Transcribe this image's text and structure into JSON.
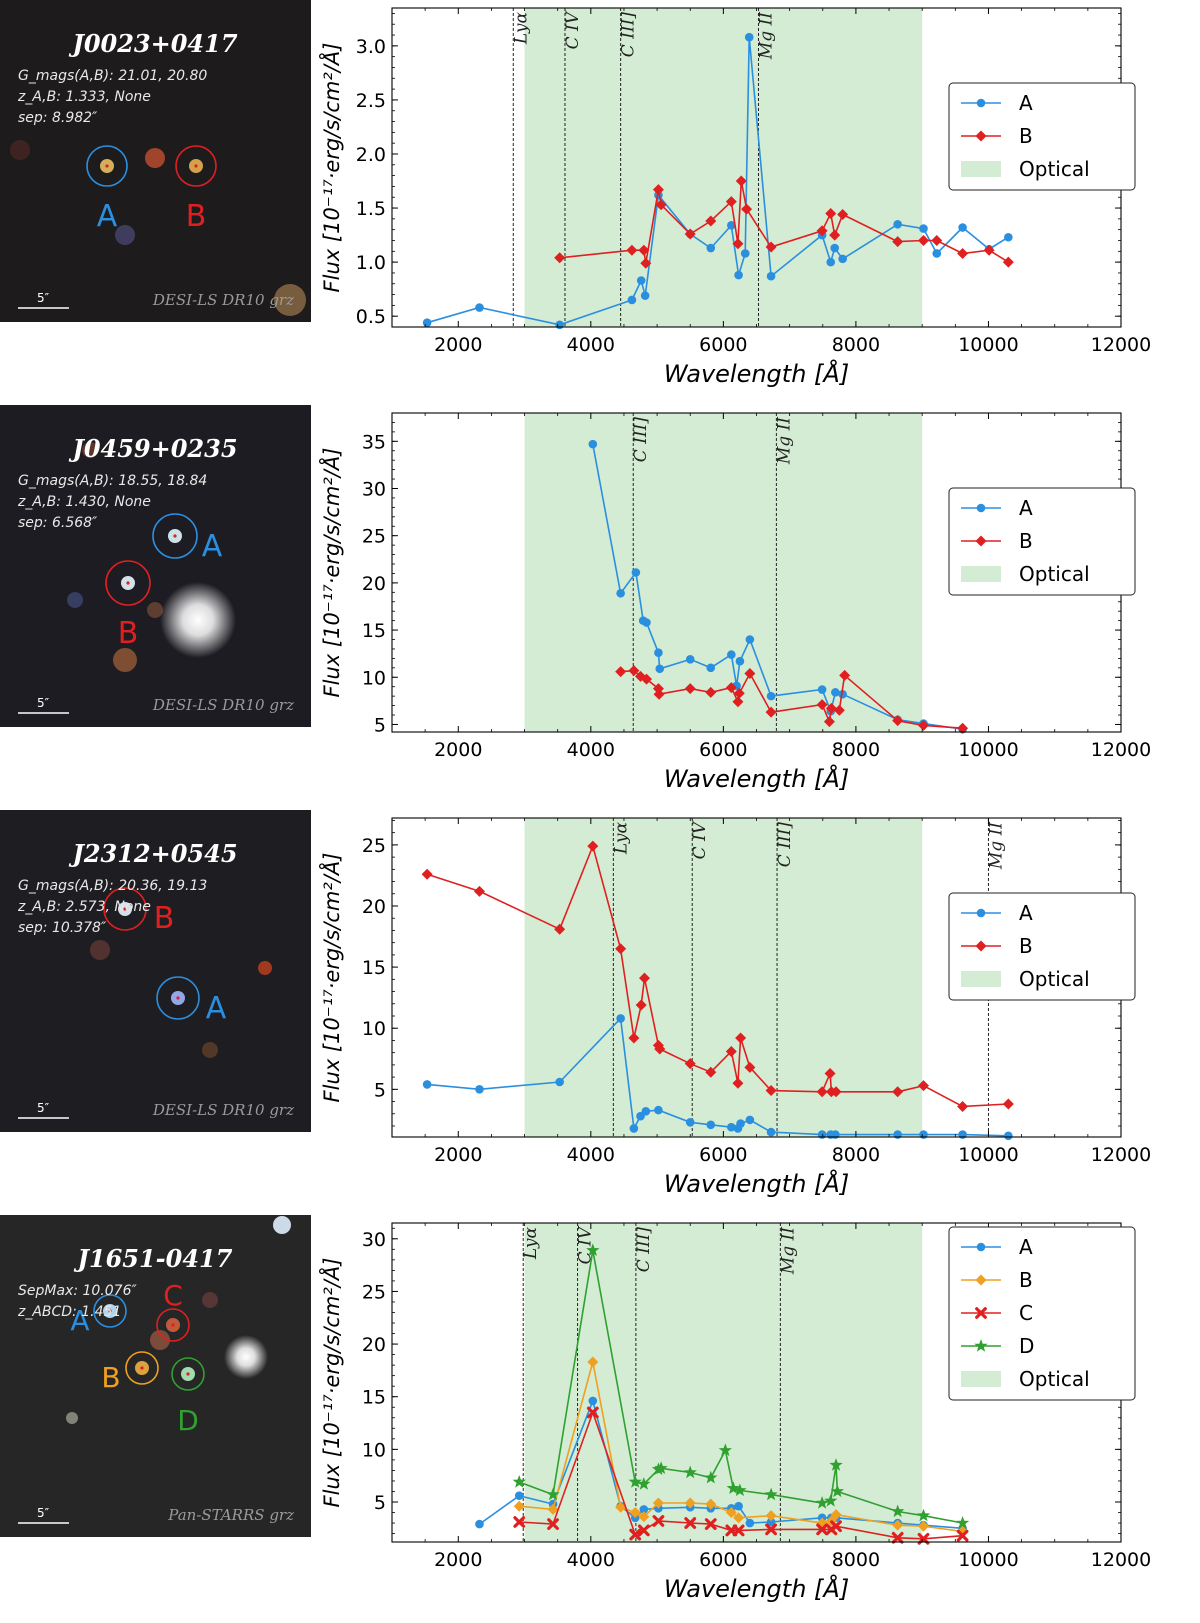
{
  "panels": [
    {
      "id": "J0023+0417",
      "image": {
        "title": "J0023+0417",
        "info": [
          "G_mags(A,B): 21.01, 20.80",
          "z_A,B: 1.333, None",
          "sep: 8.982″"
        ],
        "scale": "5″",
        "survey": "DESI-LS DR10 grz",
        "labels": [
          {
            "text": "A",
            "color": "#2b8fe0"
          },
          {
            "text": "B",
            "color": "#e02020"
          }
        ]
      },
      "chart_data": {
        "type": "line",
        "xlabel": "Wavelength [Å]",
        "ylabel": "Flux [10⁻¹⁷·erg/s/cm²/Å]",
        "xlim": [
          1000,
          12000
        ],
        "ylim": [
          0.4,
          3.35
        ],
        "xticks": [
          2000,
          4000,
          6000,
          8000,
          10000,
          12000
        ],
        "yticks": [
          0.5,
          1.0,
          1.5,
          2.0,
          2.5,
          3.0
        ],
        "ytick_labels": [
          "0.5",
          "1.0",
          "1.5",
          "2.0",
          "2.5",
          "3.0"
        ],
        "optical_band": [
          3000,
          9000
        ],
        "lines": [
          {
            "name": "Lyα",
            "x": 2830
          },
          {
            "name": "C IV",
            "x": 3610
          },
          {
            "name": "C III]",
            "x": 4450
          },
          {
            "name": "Mg II",
            "x": 6530
          }
        ],
        "legend": [
          "A",
          "B",
          "Optical"
        ],
        "legend_position": "right",
        "series": [
          {
            "name": "A",
            "color": "#2b8fe0",
            "marker": "circle",
            "x": [
              1530,
              2320,
              3530,
              4620,
              4760,
              4820,
              5020,
              5500,
              5810,
              6120,
              6230,
              6330,
              6390,
              6720,
              7490,
              7620,
              7680,
              7800,
              8630,
              9020,
              9220,
              9610,
              10010,
              10300
            ],
            "y": [
              0.44,
              0.58,
              0.42,
              0.65,
              0.83,
              0.69,
              1.62,
              1.26,
              1.13,
              1.34,
              0.88,
              1.08,
              3.08,
              0.87,
              1.25,
              1.0,
              1.13,
              1.03,
              1.35,
              1.31,
              1.08,
              1.32,
              1.12,
              1.23
            ]
          },
          {
            "name": "B",
            "color": "#e02020",
            "marker": "diamond",
            "x": [
              3530,
              4620,
              4800,
              4830,
              5020,
              5060,
              5500,
              5810,
              6120,
              6220,
              6270,
              6350,
              6720,
              7490,
              7620,
              7680,
              7800,
              8630,
              9020,
              9220,
              9610,
              10010,
              10300
            ],
            "y": [
              1.04,
              1.11,
              1.11,
              0.99,
              1.67,
              1.53,
              1.26,
              1.38,
              1.56,
              1.17,
              1.75,
              1.49,
              1.14,
              1.29,
              1.45,
              1.25,
              1.44,
              1.19,
              1.2,
              1.2,
              1.08,
              1.11,
              1.0
            ]
          }
        ]
      }
    },
    {
      "id": "J0459+0235",
      "image": {
        "title": "J0459+0235",
        "info": [
          "G_mags(A,B): 18.55, 18.84",
          "z_A,B: 1.430, None",
          "sep: 6.568″"
        ],
        "scale": "5″",
        "survey": "DESI-LS DR10 grz",
        "labels": [
          {
            "text": "A",
            "color": "#2b8fe0"
          },
          {
            "text": "B",
            "color": "#e02020"
          }
        ]
      },
      "chart_data": {
        "type": "line",
        "xlabel": "Wavelength [Å]",
        "ylabel": "Flux [10⁻¹⁷·erg/s/cm²/Å]",
        "xlim": [
          1000,
          12000
        ],
        "ylim": [
          4.2,
          38
        ],
        "xticks": [
          2000,
          4000,
          6000,
          8000,
          10000,
          12000
        ],
        "yticks": [
          5,
          10,
          15,
          20,
          25,
          30,
          35
        ],
        "ytick_labels": [
          "5",
          "10",
          "15",
          "20",
          "25",
          "30",
          "35"
        ],
        "optical_band": [
          3000,
          9000
        ],
        "lines": [
          {
            "name": "C III]",
            "x": 4640
          },
          {
            "name": "Mg II",
            "x": 6800
          }
        ],
        "legend": [
          "A",
          "B",
          "Optical"
        ],
        "legend_position": "right",
        "series": [
          {
            "name": "A",
            "color": "#2b8fe0",
            "marker": "circle",
            "x": [
              4030,
              4450,
              4680,
              4790,
              4840,
              5020,
              5040,
              5500,
              5810,
              6120,
              6200,
              6250,
              6400,
              6720,
              7490,
              7620,
              7690,
              7800,
              8630,
              9020,
              9610
            ],
            "y": [
              34.7,
              18.9,
              21.1,
              16.0,
              15.8,
              12.6,
              10.9,
              11.9,
              11.0,
              12.4,
              9.1,
              11.7,
              14.0,
              8.0,
              8.7,
              6.4,
              8.4,
              8.2,
              5.5,
              5.1,
              4.5
            ]
          },
          {
            "name": "B",
            "color": "#e02020",
            "marker": "diamond",
            "x": [
              4450,
              4650,
              4750,
              4840,
              5020,
              5030,
              5500,
              5810,
              6120,
              6220,
              6240,
              6400,
              6720,
              7490,
              7600,
              7630,
              7750,
              7830,
              8630,
              9020,
              9610
            ],
            "y": [
              10.6,
              10.7,
              10.1,
              9.8,
              8.8,
              8.2,
              8.8,
              8.4,
              8.9,
              7.4,
              8.3,
              10.4,
              6.3,
              7.1,
              5.3,
              6.7,
              6.5,
              10.2,
              5.4,
              4.9,
              4.6
            ]
          }
        ]
      }
    },
    {
      "id": "J2312+0545",
      "image": {
        "title": "J2312+0545",
        "info": [
          "G_mags(A,B): 20.36, 19.13",
          "z_A,B: 2.573, None",
          "sep: 10.378″"
        ],
        "scale": "5″",
        "survey": "DESI-LS DR10 grz",
        "labels": [
          {
            "text": "B",
            "color": "#e02020"
          },
          {
            "text": "A",
            "color": "#2b8fe0"
          }
        ]
      },
      "chart_data": {
        "type": "line",
        "xlabel": "Wavelength [Å]",
        "ylabel": "Flux [10⁻¹⁷·erg/s/cm²/Å]",
        "xlim": [
          1000,
          12000
        ],
        "ylim": [
          1.1,
          27.2
        ],
        "xticks": [
          2000,
          4000,
          6000,
          8000,
          10000,
          12000
        ],
        "yticks": [
          5,
          10,
          15,
          20,
          25
        ],
        "ytick_labels": [
          "5",
          "10",
          "15",
          "20",
          "25"
        ],
        "optical_band": [
          3000,
          9000
        ],
        "lines": [
          {
            "name": "Lyα",
            "x": 4340
          },
          {
            "name": "C IV",
            "x": 5530
          },
          {
            "name": "C III]",
            "x": 6810
          },
          {
            "name": "Mg II",
            "x": 10000
          }
        ],
        "legend": [
          "A",
          "B",
          "Optical"
        ],
        "legend_position": "right",
        "series": [
          {
            "name": "A",
            "color": "#2b8fe0",
            "marker": "circle",
            "x": [
              1530,
              2320,
              3530,
              4450,
              4650,
              4750,
              4830,
              5020,
              5500,
              5810,
              6120,
              6220,
              6260,
              6400,
              6720,
              7490,
              7620,
              7690,
              8630,
              9020,
              9610,
              10300
            ],
            "y": [
              5.4,
              5.0,
              5.6,
              10.8,
              1.8,
              2.8,
              3.2,
              3.3,
              2.3,
              2.1,
              1.9,
              1.8,
              2.2,
              2.5,
              1.5,
              1.3,
              1.3,
              1.3,
              1.3,
              1.3,
              1.3,
              1.2
            ]
          },
          {
            "name": "B",
            "color": "#e02020",
            "marker": "diamond",
            "x": [
              1530,
              2320,
              3530,
              4030,
              4450,
              4650,
              4760,
              4810,
              5020,
              5040,
              5500,
              5810,
              6120,
              6220,
              6260,
              6400,
              6720,
              7490,
              7610,
              7630,
              7700,
              8630,
              9020,
              9610,
              10300
            ],
            "y": [
              22.6,
              21.2,
              18.1,
              24.9,
              16.5,
              9.2,
              11.9,
              14.1,
              8.6,
              8.3,
              7.1,
              6.4,
              8.1,
              5.5,
              9.2,
              6.8,
              4.9,
              4.8,
              6.3,
              4.8,
              4.8,
              4.8,
              5.3,
              3.6,
              3.8
            ]
          }
        ]
      }
    },
    {
      "id": "J1651-0417",
      "image": {
        "title": "J1651-0417",
        "info": [
          "SepMax: 10.076″",
          "z_ABCD: 1.451"
        ],
        "scale": "5″",
        "survey": "Pan-STARRS grz",
        "labels": [
          {
            "text": "A",
            "color": "#2b8fe0"
          },
          {
            "text": "C",
            "color": "#e02020"
          },
          {
            "text": "B",
            "color": "#f0a020"
          },
          {
            "text": "D",
            "color": "#30a030"
          }
        ]
      },
      "chart_data": {
        "type": "line",
        "xlabel": "Wavelength [Å]",
        "ylabel": "Flux [10⁻¹⁷·erg/s/cm²/Å]",
        "xlim": [
          1000,
          12000
        ],
        "ylim": [
          1.2,
          31.5
        ],
        "xticks": [
          2000,
          4000,
          6000,
          8000,
          10000,
          12000
        ],
        "yticks": [
          5,
          10,
          15,
          20,
          25,
          30
        ],
        "ytick_labels": [
          "5",
          "10",
          "15",
          "20",
          "25",
          "30"
        ],
        "optical_band": [
          3000,
          9000
        ],
        "lines": [
          {
            "name": "Lyα",
            "x": 2980
          },
          {
            "name": "C IV",
            "x": 3800
          },
          {
            "name": "C III]",
            "x": 4680
          },
          {
            "name": "Mg II",
            "x": 6860
          }
        ],
        "legend": [
          "A",
          "B",
          "C",
          "D",
          "Optical"
        ],
        "legend_position": "top-right",
        "series": [
          {
            "name": "A",
            "color": "#2b8fe0",
            "marker": "circle",
            "x": [
              2320,
              2920,
              3430,
              4030,
              4450,
              4670,
              4800,
              5020,
              5500,
              5810,
              6120,
              6230,
              6400,
              6720,
              7490,
              7630,
              7700,
              8630,
              9020,
              9610
            ],
            "y": [
              2.9,
              5.6,
              4.8,
              14.6,
              4.6,
              3.5,
              4.3,
              4.4,
              4.5,
              4.4,
              4.4,
              4.6,
              3.0,
              3.1,
              3.5,
              3.5,
              3.5,
              3.0,
              2.8,
              2.5
            ]
          },
          {
            "name": "B",
            "color": "#f0a020",
            "marker": "diamond",
            "x": [
              2920,
              3430,
              4030,
              4450,
              4670,
              4800,
              5020,
              5500,
              5810,
              6120,
              6230,
              6720,
              7490,
              7630,
              7700,
              8630,
              9020,
              9610
            ],
            "y": [
              4.6,
              4.3,
              18.3,
              4.5,
              4.0,
              3.6,
              4.9,
              4.9,
              4.8,
              4.0,
              3.5,
              3.7,
              3.0,
              3.2,
              3.8,
              2.8,
              2.7,
              2.2
            ]
          },
          {
            "name": "C",
            "color": "#e02020",
            "marker": "x",
            "x": [
              2920,
              3430,
              4030,
              4670,
              4800,
              5020,
              5500,
              5810,
              6120,
              6230,
              6720,
              7490,
              7630,
              7700,
              8630,
              9020,
              9610
            ],
            "y": [
              3.1,
              2.9,
              13.5,
              1.9,
              2.3,
              3.2,
              3.0,
              2.9,
              2.3,
              2.3,
              2.4,
              2.4,
              2.4,
              2.7,
              1.6,
              1.5,
              1.8
            ]
          },
          {
            "name": "D",
            "color": "#30a030",
            "marker": "star",
            "x": [
              2920,
              3430,
              4030,
              4670,
              4800,
              5020,
              5060,
              5500,
              5810,
              6030,
              6150,
              6250,
              6720,
              7490,
              7620,
              7700,
              7720,
              8630,
              9020,
              9610
            ],
            "y": [
              6.9,
              5.7,
              28.9,
              6.9,
              6.7,
              8.1,
              8.2,
              7.8,
              7.3,
              9.9,
              6.3,
              6.1,
              5.7,
              4.9,
              5.1,
              8.5,
              6.0,
              4.1,
              3.7,
              3.0
            ]
          }
        ]
      }
    }
  ]
}
